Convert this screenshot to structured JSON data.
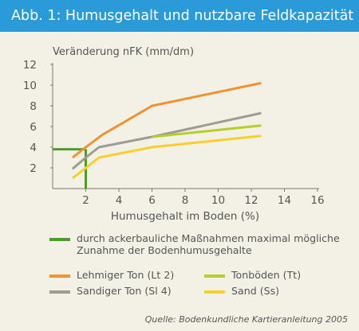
{
  "header": {
    "title": "Abb. 1: Humusgehalt und nutzbare Feldkapazität"
  },
  "colors": {
    "header_bg": "#2a9bd8",
    "background": "#f3f1e6",
    "lehm": "#f39130",
    "sandigton": "#a09a94",
    "ton": "#b8cc2a",
    "sand": "#fbcf2a",
    "acker": "#4f9a2e"
  },
  "chart_data": {
    "type": "line",
    "ylabel": "Veränderung nFK (mm/dm)",
    "xlabel": "Humusgehalt im Boden (%)",
    "xlim": [
      0,
      16
    ],
    "ylim": [
      0,
      12
    ],
    "xticks": [
      "2",
      "4",
      "6",
      "8",
      "10",
      "12",
      "14",
      "16"
    ],
    "yticks": [
      "2",
      "4",
      "6",
      "8",
      "10",
      "12"
    ],
    "series": [
      {
        "name": "Lehmiger Ton (Lt 2)",
        "color": "#f39130",
        "x": [
          1.2,
          2.0,
          3.0,
          6.0,
          12.6
        ],
        "y": [
          3.0,
          4.0,
          5.2,
          8.0,
          10.2
        ]
      },
      {
        "name": "Sandiger Ton (Sl 4)",
        "color": "#a09a94",
        "x": [
          1.2,
          2.0,
          2.8,
          6.0,
          12.6
        ],
        "y": [
          1.9,
          3.0,
          4.0,
          5.0,
          7.3
        ]
      },
      {
        "name": "Tonböden (Tt)",
        "color": "#b8cc2a",
        "x": [
          6.0,
          12.6
        ],
        "y": [
          5.0,
          6.1
        ]
      },
      {
        "name": "Sand (Ss)",
        "color": "#fbcf2a",
        "x": [
          1.2,
          2.0,
          2.8,
          6.0,
          12.6
        ],
        "y": [
          1.0,
          2.0,
          3.0,
          4.0,
          5.1
        ]
      }
    ],
    "annotation": {
      "label": "durch ackerbauliche Maßnahmen maximal mögliche Zunahme der Bodenhumusgehalte",
      "color": "#4f9a2e",
      "x": 2.0,
      "y": 3.8
    }
  },
  "legend": {
    "acker_line1": "durch ackerbauliche Maßnahmen maximal mögliche",
    "acker_line2": "Zunahme der Bodenhumusgehalte",
    "lehm": "Lehmiger Ton (Lt 2)",
    "ton": "Tonböden (Tt)",
    "sandigton": "Sandiger Ton (Sl 4)",
    "sand": "Sand (Ss)"
  },
  "source": "Quelle: Bodenkundliche Kartieranleitung 2005"
}
